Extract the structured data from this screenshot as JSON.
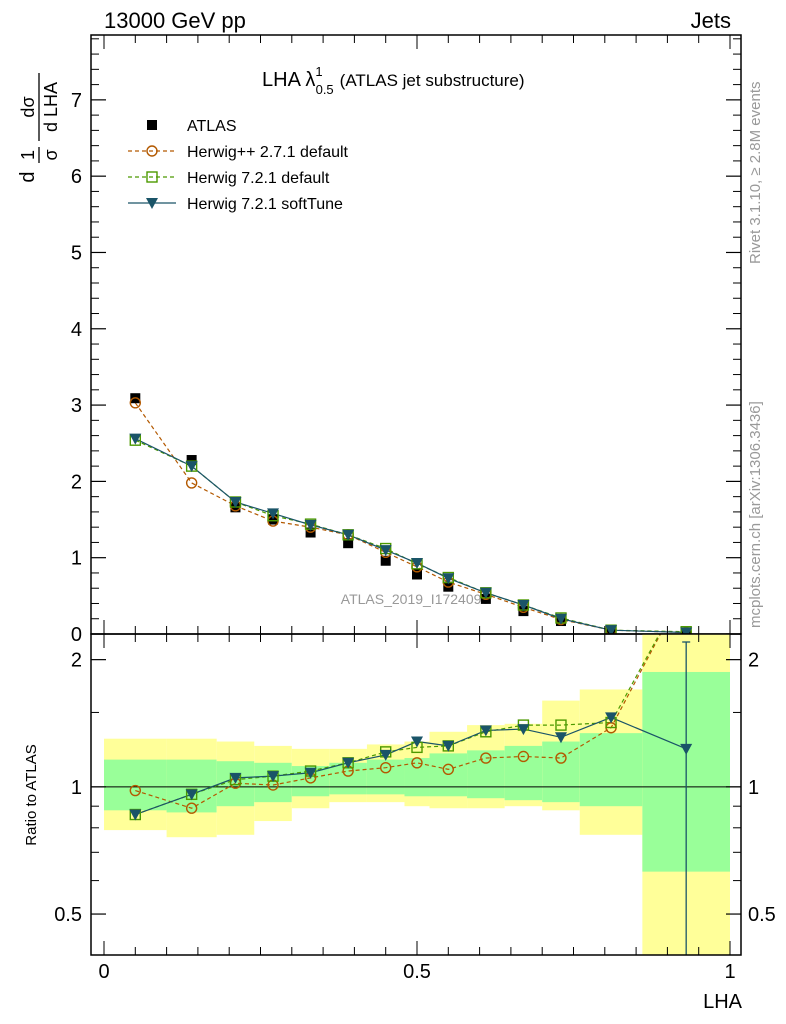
{
  "header": {
    "left": "13000 GeV pp",
    "right": "Jets"
  },
  "side_texts": {
    "top": "Rivet 3.1.10, ≥ 2.8M events",
    "bottom": "mcplots.cern.ch [arXiv:1306.3436]"
  },
  "watermark": "ATLAS_2019_I1724098",
  "colors": {
    "atlas": "#000000",
    "herwigpp": "#b35900",
    "herwig721": "#4c9900",
    "softtune": "#1a5468",
    "band_inner": "#99ff99",
    "band_outer": "#ffff99"
  },
  "chart_data": [
    {
      "type": "line",
      "panel": "main",
      "title": "LHA λ¹₀.₅ (ATLAS jet substructure)",
      "title_main": "LHA λ",
      "title_sup": "1",
      "title_sub": "0.5",
      "title_rest": "(ATLAS jet substructure)",
      "ylabel": "1/σ dσ/d LHA",
      "ylabel_num": "1",
      "ylabel_den": "σ",
      "ylabel_dnum": "dσ",
      "ylabel_dden": "d LHA",
      "xlim": [
        0,
        1
      ],
      "ylim": [
        0,
        7.85
      ],
      "y_ticks": [
        0,
        1,
        2,
        3,
        4,
        5,
        6,
        7
      ],
      "y_tick_labels": [
        "0",
        "1",
        "2",
        "3",
        "4",
        "5",
        "6",
        "7"
      ],
      "legend_position": "top-left",
      "x": [
        0.05,
        0.14,
        0.21,
        0.27,
        0.33,
        0.39,
        0.45,
        0.5,
        0.55,
        0.61,
        0.67,
        0.73,
        0.81,
        0.93
      ],
      "series": [
        {
          "name": "ATLAS",
          "marker": "filled-square",
          "values": [
            3.09,
            2.28,
            1.66,
            1.5,
            1.33,
            1.19,
            0.96,
            0.78,
            0.62,
            0.46,
            0.3,
            0.17,
            0.04,
            0.01
          ]
        },
        {
          "name": "Herwig++ 2.7.1 default",
          "marker": "open-circle",
          "line": "dashed",
          "values": [
            3.03,
            1.98,
            1.68,
            1.48,
            1.4,
            1.3,
            1.07,
            0.88,
            0.68,
            0.52,
            0.35,
            0.19,
            0.05,
            0.02
          ]
        },
        {
          "name": "Herwig 7.2.1 default",
          "marker": "open-square",
          "line": "dashed",
          "values": [
            2.54,
            2.2,
            1.73,
            1.55,
            1.44,
            1.3,
            1.12,
            0.92,
            0.74,
            0.54,
            0.38,
            0.21,
            0.05,
            0.03
          ]
        },
        {
          "name": "Herwig 7.2.1 softTune",
          "marker": "filled-triangle-down",
          "line": "solid",
          "values": [
            2.56,
            2.2,
            1.73,
            1.58,
            1.43,
            1.3,
            1.1,
            0.93,
            0.73,
            0.54,
            0.38,
            0.2,
            0.05,
            0.02
          ]
        }
      ]
    },
    {
      "type": "line",
      "panel": "ratio",
      "xlabel": "LHA",
      "ylabel": "Ratio to ATLAS",
      "xlim": [
        0,
        1
      ],
      "ylim": [
        0.4,
        2.3
      ],
      "log_scale_y": true,
      "y_ticks": [
        0.5,
        1,
        2
      ],
      "y_tick_labels": [
        "0.5",
        "1",
        "2"
      ],
      "x_ticks": [
        0,
        0.5,
        1
      ],
      "x_tick_labels": [
        "0",
        "0.5",
        "1"
      ],
      "x": [
        0.05,
        0.14,
        0.21,
        0.27,
        0.33,
        0.39,
        0.45,
        0.5,
        0.55,
        0.61,
        0.67,
        0.73,
        0.81,
        0.93
      ],
      "bins": [
        [
          0,
          0.1
        ],
        [
          0.1,
          0.18
        ],
        [
          0.18,
          0.24
        ],
        [
          0.24,
          0.3
        ],
        [
          0.3,
          0.36
        ],
        [
          0.36,
          0.42
        ],
        [
          0.42,
          0.48
        ],
        [
          0.48,
          0.52
        ],
        [
          0.52,
          0.58
        ],
        [
          0.58,
          0.64
        ],
        [
          0.64,
          0.7
        ],
        [
          0.7,
          0.76
        ],
        [
          0.76,
          0.86
        ],
        [
          0.86,
          1.0
        ]
      ],
      "band_inner": [
        [
          0.88,
          1.16
        ],
        [
          0.87,
          1.16
        ],
        [
          0.9,
          1.15
        ],
        [
          0.92,
          1.14
        ],
        [
          0.95,
          1.12
        ],
        [
          0.96,
          1.14
        ],
        [
          0.96,
          1.16
        ],
        [
          0.95,
          1.17
        ],
        [
          0.95,
          1.2
        ],
        [
          0.94,
          1.22
        ],
        [
          0.93,
          1.25
        ],
        [
          0.92,
          1.28
        ],
        [
          0.9,
          1.34
        ],
        [
          0.63,
          1.87
        ]
      ],
      "band_outer": [
        [
          0.79,
          1.3
        ],
        [
          0.76,
          1.3
        ],
        [
          0.77,
          1.28
        ],
        [
          0.83,
          1.25
        ],
        [
          0.89,
          1.23
        ],
        [
          0.92,
          1.23
        ],
        [
          0.92,
          1.26
        ],
        [
          0.9,
          1.28
        ],
        [
          0.89,
          1.35
        ],
        [
          0.89,
          1.4
        ],
        [
          0.9,
          1.41
        ],
        [
          0.88,
          1.6
        ],
        [
          0.77,
          1.7
        ],
        [
          0.36,
          2.4
        ]
      ],
      "series": [
        {
          "name": "Herwig++ 2.7.1 default",
          "marker": "open-circle",
          "line": "dashed",
          "values": [
            0.98,
            0.89,
            1.02,
            1.01,
            1.05,
            1.09,
            1.11,
            1.14,
            1.1,
            1.17,
            1.18,
            1.17,
            1.38,
            3.0
          ]
        },
        {
          "name": "Herwig 7.2.1 default",
          "marker": "open-square",
          "line": "dashed",
          "values": [
            0.86,
            0.96,
            1.04,
            1.06,
            1.09,
            1.14,
            1.21,
            1.24,
            1.25,
            1.35,
            1.4,
            1.4,
            1.42,
            3.0
          ]
        },
        {
          "name": "Herwig 7.2.1 softTune",
          "marker": "filled-triangle-down",
          "line": "solid",
          "values": [
            0.86,
            0.96,
            1.05,
            1.06,
            1.08,
            1.14,
            1.19,
            1.28,
            1.25,
            1.36,
            1.37,
            1.31,
            1.46,
            1.23
          ]
        }
      ]
    }
  ]
}
